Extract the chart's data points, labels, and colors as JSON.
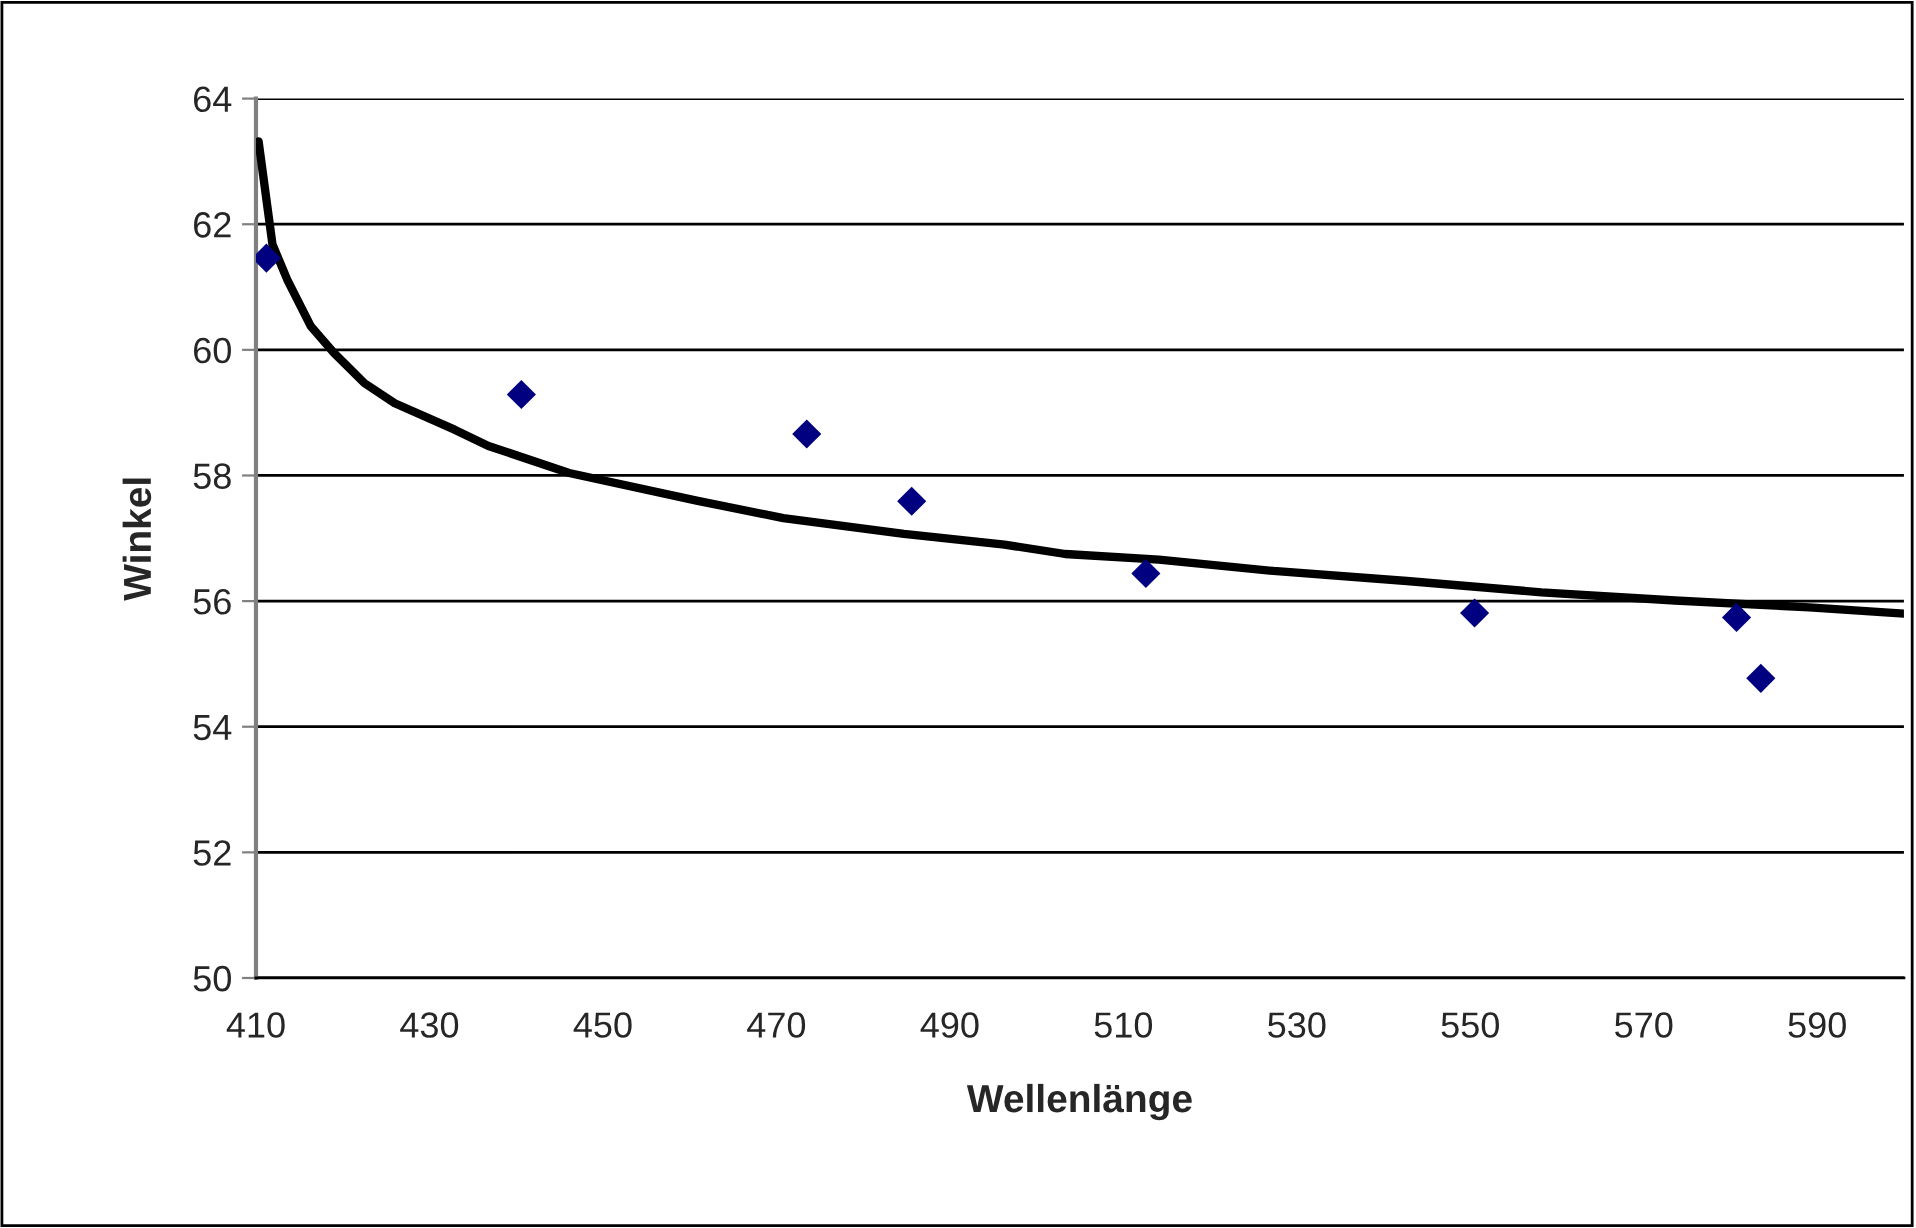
{
  "chart_data": {
    "type": "scatter",
    "xlabel": "Wellenlänge",
    "ylabel": "Winkel",
    "xlim": [
      410,
      600
    ],
    "xticks": [
      410,
      430,
      450,
      470,
      490,
      510,
      530,
      550,
      570,
      590
    ],
    "ylim": [
      50,
      64
    ],
    "yticks": [
      50,
      52,
      54,
      56,
      58,
      60,
      62,
      64
    ],
    "grid": "y",
    "legend": false,
    "series": [
      {
        "color": "#000080",
        "marker": "diamond",
        "x": [
          411.2,
          440.6,
          473.5,
          485.6,
          512.6,
          550.5,
          580.7,
          583.5
        ],
        "values": [
          61.46,
          59.29,
          58.66,
          57.59,
          56.44,
          55.81,
          55.74,
          54.77
        ]
      },
      {
        "type": "line",
        "color": "#000000",
        "marker": "none",
        "line_style": "solid",
        "x": [
          410.3,
          411.9,
          413.6,
          416.3,
          419.0,
          422.5,
          426.0,
          432.9,
          436.8,
          446.1,
          460.8,
          470.8,
          484.7,
          496.3,
          503.3,
          514.1,
          527.3,
          542.7,
          558.2,
          573.6,
          589.1,
          600
        ],
        "values": [
          63.32,
          61.68,
          61.12,
          60.38,
          59.95,
          59.47,
          59.15,
          58.73,
          58.47,
          58.04,
          57.6,
          57.32,
          57.07,
          56.9,
          56.75,
          56.66,
          56.48,
          56.32,
          56.14,
          56.01,
          55.9,
          55.8
        ]
      }
    ]
  }
}
